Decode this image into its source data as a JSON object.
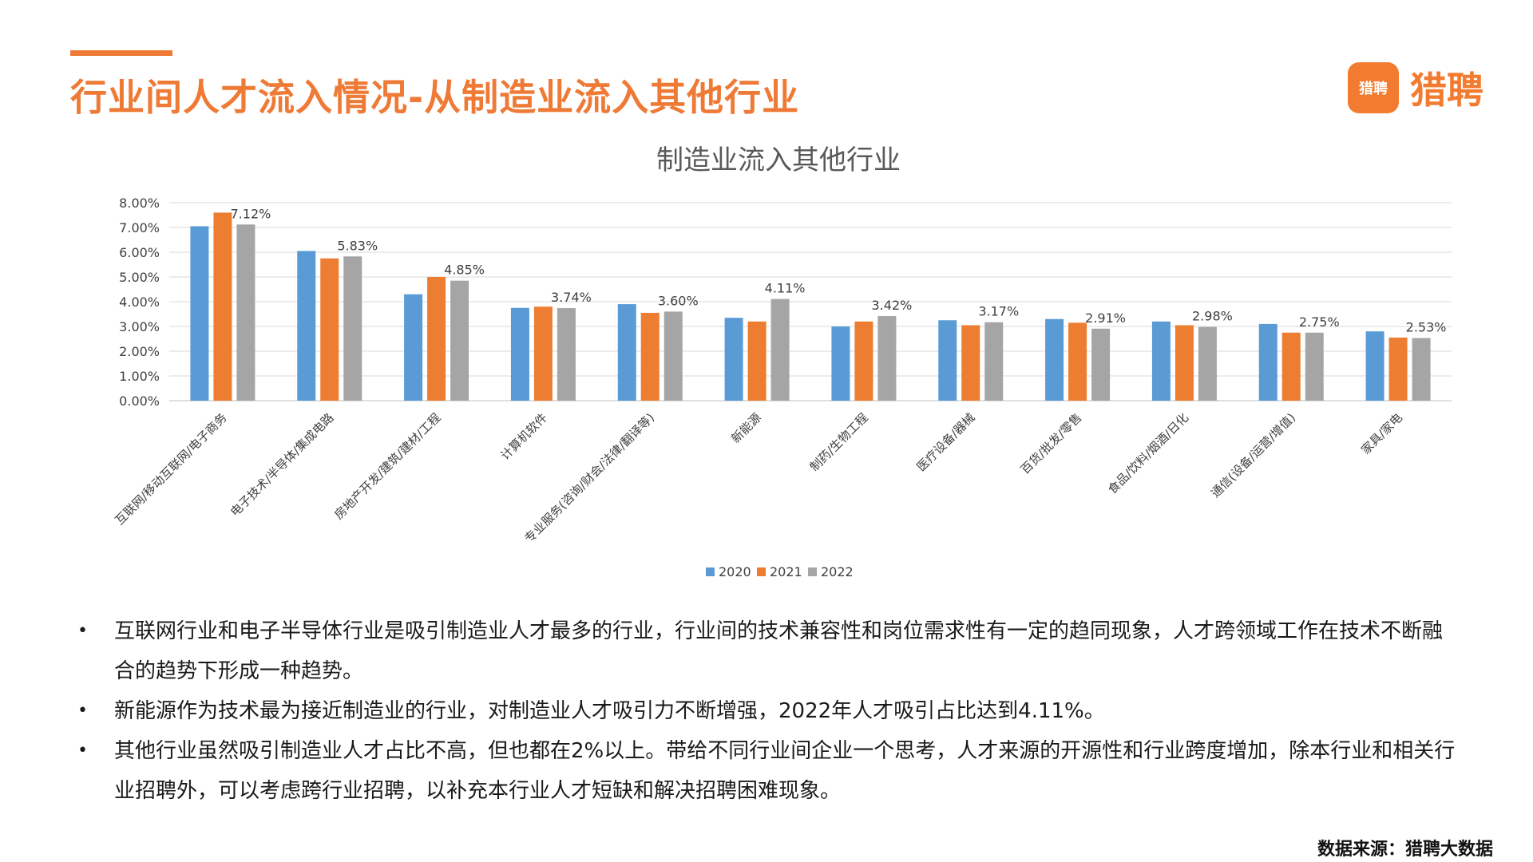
{
  "header": {
    "title": "行业间人才流入情况-从制造业流入其他行业",
    "brand_name": "猎聘",
    "brand_badge": "猎聘",
    "accent": "#ee7a36"
  },
  "chart_data": {
    "type": "bar",
    "title": "制造业流入其他行业",
    "categories": [
      "互联网/移动互联网/电子商务",
      "电子技术/半导体/集成电路",
      "房地产开发/建筑/建材/工程",
      "计算机软件",
      "专业服务(咨询/财会/法律/翻译等)",
      "新能源",
      "制药/生物工程",
      "医疗设备/器械",
      "百货/批发/零售",
      "食品/饮料/烟酒/日化",
      "通信(设备/运营/增值)",
      "家具/家电"
    ],
    "series": [
      {
        "name": "2020",
        "color": "#5b9bd5",
        "values": [
          7.05,
          6.05,
          4.3,
          3.75,
          3.9,
          3.35,
          3.0,
          3.25,
          3.3,
          3.2,
          3.1,
          2.8
        ]
      },
      {
        "name": "2021",
        "color": "#ed7d31",
        "values": [
          7.6,
          5.75,
          5.0,
          3.8,
          3.55,
          3.2,
          3.2,
          3.05,
          3.15,
          3.05,
          2.75,
          2.55
        ]
      },
      {
        "name": "2022",
        "color": "#a5a5a5",
        "values": [
          7.12,
          5.83,
          4.85,
          3.74,
          3.6,
          4.11,
          3.42,
          3.17,
          2.91,
          2.98,
          2.75,
          2.53
        ]
      }
    ],
    "data_labels": [
      "7.12%",
      "5.83%",
      "4.85%",
      "3.74%",
      "3.60%",
      "4.11%",
      "3.42%",
      "3.17%",
      "2.91%",
      "2.98%",
      "2.75%",
      "2.53%"
    ],
    "y_ticks": [
      "0.00%",
      "1.00%",
      "2.00%",
      "3.00%",
      "4.00%",
      "5.00%",
      "6.00%",
      "7.00%",
      "8.00%"
    ],
    "ylim": [
      0,
      8
    ],
    "grid": true,
    "legend_position": "bottom"
  },
  "bullets": [
    "互联网行业和电子半导体行业是吸引制造业人才最多的行业，行业间的技术兼容性和岗位需求性有一定的趋同现象，人才跨领域工作在技术不断融合的趋势下形成一种趋势。",
    "新能源作为技术最为接近制造业的行业，对制造业人才吸引力不断增强，2022年人才吸引占比达到4.11%。",
    "其他行业虽然吸引制造业人才占比不高，但也都在2%以上。带给不同行业间企业一个思考，人才来源的开源性和行业跨度增加，除本行业和相关行业招聘外，可以考虑跨行业招聘，以补充本行业人才短缺和解决招聘困难现象。"
  ],
  "source": "数据来源：猎聘大数据"
}
